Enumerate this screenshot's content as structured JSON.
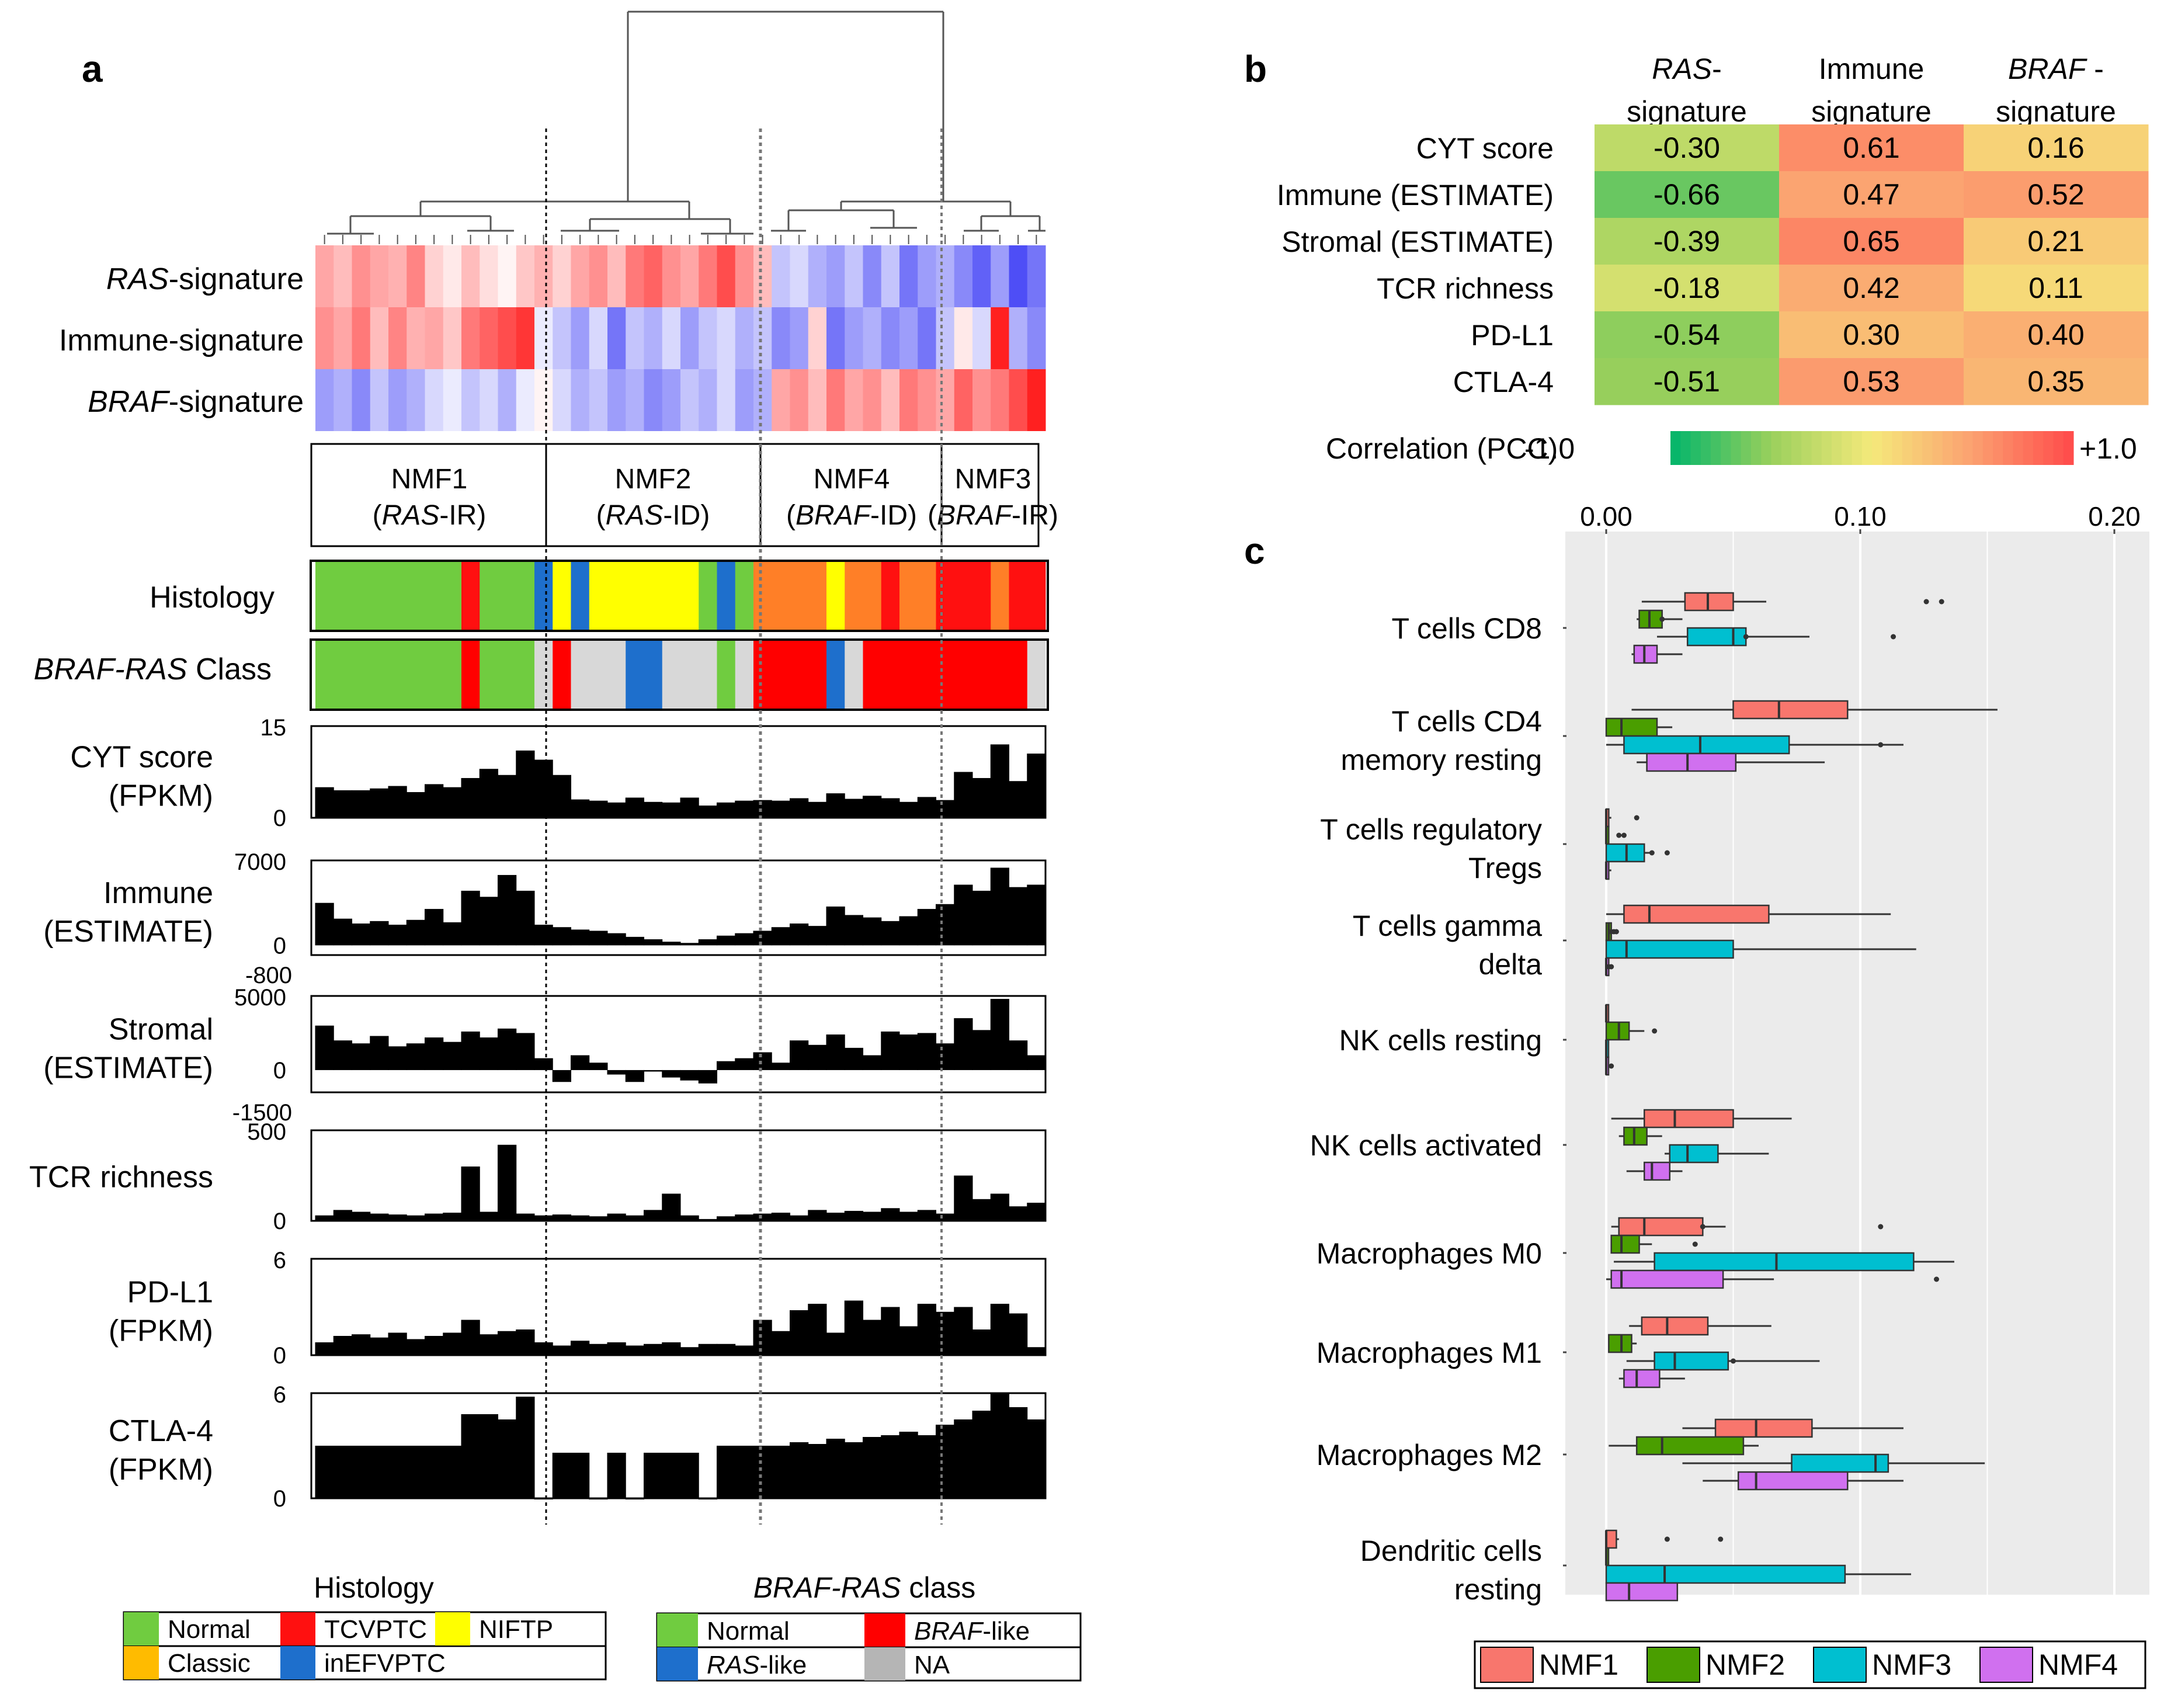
{
  "panel_letters": {
    "a": "a",
    "b": "b",
    "c": "c"
  },
  "colors": {
    "heat_pos": "#ff2020",
    "heat_neg": "#3a3af5",
    "normal": "#70cc40",
    "tcvptc": "#ff1010",
    "niftp": "#ffff00",
    "classic": "#ffbb00",
    "inefvptc": "#1e6fcc",
    "orange": "#ff7f27",
    "braf_like": "#ff0000",
    "ras_like": "#1e6fcc",
    "na": "#d8d8d8",
    "nmf1": "#f8766d",
    "nmf2": "#4a9e00",
    "nmf3": "#00bfd0",
    "nmf4": "#d070ef",
    "panel_bg": "#ebebeb"
  },
  "panel_a": {
    "signature_rows": [
      {
        "italic": "RAS",
        "rest": "-signature"
      },
      {
        "italic": "",
        "rest": "Immune-signature"
      },
      {
        "italic": "BRAF",
        "rest": "-signature"
      }
    ],
    "heatmap": {
      "RAS": [
        0.4,
        0.3,
        0.5,
        0.4,
        0.35,
        0.55,
        0.2,
        0.1,
        0.3,
        0.15,
        0.05,
        0.25,
        0.35,
        0.2,
        0.4,
        0.5,
        0.3,
        0.6,
        0.7,
        0.5,
        0.4,
        0.6,
        0.8,
        0.5,
        0.3,
        -0.3,
        -0.2,
        -0.4,
        -0.5,
        -0.3,
        -0.6,
        -0.3,
        -0.7,
        -0.5,
        -0.4,
        -0.6,
        -0.8,
        -0.5,
        -0.9,
        -0.7
      ],
      "Immune": [
        0.5,
        0.4,
        0.6,
        0.3,
        0.55,
        0.35,
        0.4,
        0.25,
        0.6,
        0.7,
        0.8,
        0.9,
        -0.1,
        -0.3,
        -0.5,
        -0.2,
        -0.7,
        -0.3,
        -0.4,
        -0.2,
        -0.5,
        -0.3,
        -0.2,
        -0.4,
        -0.3,
        -0.6,
        -0.5,
        0.2,
        -0.7,
        -0.5,
        -0.4,
        -0.6,
        -0.5,
        -0.7,
        -0.3,
        0.1,
        -0.2,
        1.0,
        -0.4,
        -0.6
      ],
      "BRAF": [
        -0.5,
        -0.4,
        -0.6,
        -0.3,
        -0.5,
        -0.4,
        -0.2,
        -0.1,
        -0.3,
        -0.2,
        -0.4,
        -0.1,
        0.05,
        -0.2,
        -0.4,
        -0.3,
        -0.5,
        -0.4,
        -0.6,
        -0.5,
        -0.3,
        -0.4,
        -0.2,
        -0.5,
        -0.4,
        0.4,
        0.5,
        0.3,
        0.6,
        0.4,
        0.5,
        0.3,
        0.6,
        0.5,
        0.4,
        0.7,
        0.5,
        0.6,
        0.8,
        1.0
      ]
    },
    "clusters": [
      {
        "name": "NMF1",
        "sub_pre": "(",
        "sub_italic": "RAS",
        "sub_post": "-IR)"
      },
      {
        "name": "NMF2",
        "sub_pre": "(",
        "sub_italic": "RAS",
        "sub_post": "-ID)"
      },
      {
        "name": "NMF4",
        "sub_pre": "(",
        "sub_italic": "BRAF",
        "sub_post": "-ID)"
      },
      {
        "name": "NMF3",
        "sub_pre": "(",
        "sub_italic": "BRAF",
        "sub_post": "-IR)"
      }
    ],
    "histology_label": "Histology",
    "histology_strip": [
      "normal",
      "normal",
      "normal",
      "normal",
      "normal",
      "normal",
      "normal",
      "normal",
      "tcvptc",
      "normal",
      "normal",
      "normal",
      "inefvptc",
      "niftp",
      "inefvptc",
      "niftp",
      "niftp",
      "niftp",
      "niftp",
      "niftp",
      "niftp",
      "normal",
      "inefvptc",
      "normal",
      "orange",
      "orange",
      "orange",
      "orange",
      "niftp",
      "orange",
      "orange",
      "tcvptc",
      "orange",
      "orange",
      "tcvptc",
      "tcvptc",
      "tcvptc",
      "orange",
      "tcvptc",
      "tcvptc"
    ],
    "class_label_italic": "BRAF-RAS",
    "class_label_rest": " Class",
    "class_strip": [
      "normal",
      "normal",
      "normal",
      "normal",
      "normal",
      "normal",
      "normal",
      "normal",
      "braf_like",
      "normal",
      "normal",
      "normal",
      "na",
      "braf_like",
      "na",
      "na",
      "na",
      "ras_like",
      "ras_like",
      "na",
      "na",
      "na",
      "normal",
      "na",
      "braf_like",
      "braf_like",
      "braf_like",
      "braf_like",
      "ras_like",
      "na",
      "braf_like",
      "braf_like",
      "braf_like",
      "braf_like",
      "braf_like",
      "braf_like",
      "braf_like",
      "braf_like",
      "braf_like",
      "na"
    ],
    "bar_tracks": [
      {
        "label1": "CYT score",
        "label2": "(FPKM)",
        "ymax_label": "15",
        "ymin_label": "0",
        "extra_label": "",
        "min": 0,
        "max": 15,
        "values": [
          5,
          4.5,
          4.5,
          4.8,
          5.2,
          4.2,
          5.5,
          5,
          6.5,
          8,
          7,
          11,
          9.5,
          7,
          3,
          2.8,
          2.5,
          3.3,
          2.6,
          2.5,
          3.3,
          2,
          2.5,
          2.8,
          2.9,
          2.8,
          3.2,
          2.6,
          4,
          3.1,
          3.6,
          3.2,
          2.6,
          3.4,
          2.9,
          7.5,
          6.5,
          12,
          6,
          10.5
        ]
      },
      {
        "label1": "Immune",
        "label2": "(ESTIMATE)",
        "ymax_label": "7000",
        "ymin_label": "0",
        "extra_label": "-800",
        "min": -800,
        "max": 7000,
        "values": [
          3500,
          2200,
          1800,
          2000,
          1700,
          2100,
          3000,
          1900,
          4500,
          4000,
          5800,
          4500,
          1700,
          1500,
          1300,
          1200,
          1000,
          700,
          500,
          300,
          200,
          500,
          800,
          1000,
          1200,
          1500,
          1800,
          1600,
          3200,
          2500,
          2300,
          2000,
          2400,
          3000,
          3400,
          5000,
          4500,
          6400,
          4800,
          5000
        ]
      },
      {
        "label1": "Stromal",
        "label2": "(ESTIMATE)",
        "ymax_label": "5000",
        "ymin_label": "0",
        "extra_label": "-1500",
        "min": -1500,
        "max": 5000,
        "values": [
          3000,
          2000,
          1800,
          2300,
          1600,
          1800,
          2200,
          1900,
          2600,
          2200,
          2800,
          2500,
          800,
          -800,
          1000,
          500,
          -300,
          -800,
          -100,
          -500,
          -700,
          -900,
          600,
          800,
          1200,
          500,
          2000,
          1700,
          2400,
          1500,
          1000,
          2600,
          2400,
          2500,
          1800,
          3500,
          2700,
          4800,
          2000,
          1000
        ]
      },
      {
        "label1": "TCR richness",
        "label2": "",
        "ymax_label": "500",
        "ymin_label": "0",
        "extra_label": "",
        "min": 0,
        "max": 500,
        "values": [
          30,
          60,
          50,
          40,
          35,
          30,
          40,
          45,
          300,
          50,
          420,
          40,
          30,
          35,
          30,
          25,
          40,
          30,
          60,
          150,
          30,
          10,
          25,
          35,
          40,
          45,
          30,
          60,
          45,
          55,
          50,
          70,
          50,
          60,
          40,
          250,
          120,
          150,
          80,
          100
        ]
      },
      {
        "label1": "PD-L1",
        "label2": "(FPKM)",
        "ymax_label": "6",
        "ymin_label": "0",
        "extra_label": "",
        "min": 0,
        "max": 6,
        "values": [
          0.8,
          1.2,
          1.3,
          1.1,
          1.4,
          1,
          1.2,
          1.4,
          2.2,
          1.3,
          1.5,
          1.6,
          0.8,
          0.6,
          0.9,
          0.7,
          0.8,
          0.6,
          0.7,
          0.8,
          0.5,
          0.7,
          0.7,
          0.6,
          2.2,
          1.5,
          2.8,
          3.2,
          1.4,
          3.4,
          2.2,
          3.0,
          1.8,
          3.2,
          2.7,
          3.0,
          1.6,
          3.2,
          2.6,
          0.5
        ]
      },
      {
        "label1": "CTLA-4",
        "label2": "(FPKM)",
        "ymax_label": "6",
        "ymin_label": "0",
        "extra_label": "",
        "min": 0,
        "max": 6,
        "values": [
          3,
          3,
          3,
          3,
          3,
          3,
          3,
          3,
          4.8,
          4.8,
          4.5,
          5.8,
          0,
          2.6,
          2.6,
          0,
          2.6,
          0,
          2.6,
          2.6,
          2.6,
          0,
          3,
          3,
          3,
          3,
          3.2,
          3.1,
          3.4,
          3.2,
          3.5,
          3.6,
          3.8,
          3.6,
          4.2,
          4.5,
          5.0,
          6,
          5.2,
          4.5
        ]
      }
    ],
    "legend_histology": {
      "title": "Histology",
      "items": [
        {
          "label": "Normal",
          "color": "#70cc40"
        },
        {
          "label": "TCVPTC",
          "color": "#ff1010"
        },
        {
          "label": "NIFTP",
          "color": "#ffff00"
        },
        {
          "label": "Classic",
          "color": "#ffbb00"
        },
        {
          "label": "inEFVPTC",
          "color": "#1e6fcc"
        }
      ]
    },
    "legend_class": {
      "title_italic": "BRAF-RAS",
      "title_rest": " class",
      "items": [
        {
          "pre": "Normal",
          "italic": "",
          "post": "",
          "color": "#70cc40"
        },
        {
          "pre": "",
          "italic": "BRAF",
          "post": "-like",
          "color": "#ff0000"
        },
        {
          "pre": "",
          "italic": "RAS",
          "post": "-like",
          "color": "#1e6fcc"
        },
        {
          "pre": "NA",
          "italic": "",
          "post": "",
          "color": "#b5b5b5"
        }
      ]
    }
  },
  "panel_b": {
    "columns": [
      {
        "italic": "RAS",
        "line1_rest": "-",
        "line2": "signature"
      },
      {
        "italic": "",
        "line1_rest": "Immune",
        "line2": "signature"
      },
      {
        "italic": "BRAF",
        "line1_rest": " -",
        "line2": "signature"
      }
    ],
    "rows": [
      "CYT score",
      "Immune (ESTIMATE)",
      "Stromal (ESTIMATE)",
      "TCR richness",
      "PD-L1",
      "CTLA-4"
    ],
    "values": [
      [
        "-0.30",
        "0.61",
        "0.16"
      ],
      [
        "-0.66",
        "0.47",
        "0.52"
      ],
      [
        "-0.39",
        "0.65",
        "0.21"
      ],
      [
        "-0.18",
        "0.42",
        "0.11"
      ],
      [
        "-0.54",
        "0.30",
        "0.40"
      ],
      [
        "-0.51",
        "0.53",
        "0.35"
      ]
    ],
    "colorbar_label": "Correlation (PCC)",
    "colorbar_min": "-1.0",
    "colorbar_max": "+1.0"
  },
  "chart_data": {
    "type": "boxplot",
    "x_ticks": [
      "0.00",
      "0.10",
      "0.20"
    ],
    "xlim": [
      -0.002,
      0.21
    ],
    "categories": [
      {
        "line1": "T cells CD8",
        "line2": ""
      },
      {
        "line1": "T cells CD4",
        "line2": "memory resting"
      },
      {
        "line1": "T cells regulatory",
        "line2": "Tregs"
      },
      {
        "line1": "T cells gamma",
        "line2": "delta"
      },
      {
        "line1": "NK cells resting",
        "line2": ""
      },
      {
        "line1": "NK cells activated",
        "line2": ""
      },
      {
        "line1": "Macrophages M0",
        "line2": ""
      },
      {
        "line1": "Macrophages M1",
        "line2": ""
      },
      {
        "line1": "Macrophages M2",
        "line2": ""
      },
      {
        "line1": "Dendritic cells",
        "line2": "resting"
      }
    ],
    "legend": [
      "NMF1",
      "NMF2",
      "NMF3",
      "NMF4"
    ],
    "boxes": [
      [
        [
          0.014,
          0.031,
          0.04,
          0.05,
          0.063
        ],
        [
          0.012,
          0.013,
          0.017,
          0.022,
          0.03
        ],
        [
          0.02,
          0.032,
          0.05,
          0.055,
          0.08
        ],
        [
          0.01,
          0.011,
          0.015,
          0.02,
          0.03
        ]
      ],
      [
        [
          0.01,
          0.05,
          0.068,
          0.095,
          0.154
        ],
        [
          0.0,
          0.0,
          0.006,
          0.02,
          0.026
        ],
        [
          0.0,
          0.007,
          0.037,
          0.072,
          0.117
        ],
        [
          0.012,
          0.016,
          0.032,
          0.051,
          0.086
        ]
      ],
      [
        [
          0.0,
          0.0,
          0.0,
          0.001,
          0.002
        ],
        [
          0.0,
          0.0,
          0.0,
          0.001,
          0.001
        ],
        [
          0.0,
          0.0,
          0.008,
          0.015,
          0.018
        ],
        [
          0.0,
          0.0,
          0.0,
          0.001,
          0.002
        ]
      ],
      [
        [
          0.0,
          0.007,
          0.017,
          0.064,
          0.112
        ],
        [
          0.0,
          0.0,
          0.001,
          0.002,
          0.003
        ],
        [
          0.0,
          0.0,
          0.008,
          0.05,
          0.122
        ],
        [
          0.0,
          0.0,
          0.0,
          0.001,
          0.002
        ]
      ],
      [
        [
          0.0,
          0.0,
          0.0,
          0.0,
          0.0
        ],
        [
          0.0,
          0.0,
          0.005,
          0.009,
          0.015
        ],
        [
          0.0,
          0.0,
          0.0,
          0.0,
          0.0
        ],
        [
          0.0,
          0.0,
          0.0,
          0.0,
          0.0
        ]
      ],
      [
        [
          0.002,
          0.015,
          0.027,
          0.05,
          0.073
        ],
        [
          0.005,
          0.007,
          0.011,
          0.016,
          0.022
        ],
        [
          0.023,
          0.025,
          0.032,
          0.044,
          0.064
        ],
        [
          0.008,
          0.015,
          0.018,
          0.025,
          0.03
        ]
      ],
      [
        [
          0.002,
          0.005,
          0.015,
          0.038,
          0.047
        ],
        [
          0.002,
          0.002,
          0.006,
          0.013,
          0.018
        ],
        [
          0.003,
          0.019,
          0.067,
          0.121,
          0.137
        ],
        [
          0.0,
          0.002,
          0.006,
          0.046,
          0.066
        ]
      ],
      [
        [
          0.009,
          0.014,
          0.024,
          0.04,
          0.065
        ],
        [
          0.001,
          0.001,
          0.006,
          0.01,
          0.012
        ],
        [
          0.008,
          0.019,
          0.027,
          0.048,
          0.084
        ],
        [
          0.005,
          0.007,
          0.012,
          0.021,
          0.031
        ]
      ],
      [
        [
          0.03,
          0.043,
          0.059,
          0.081,
          0.117
        ],
        [
          0.001,
          0.012,
          0.022,
          0.054,
          0.06
        ],
        [
          0.03,
          0.073,
          0.106,
          0.111,
          0.149
        ],
        [
          0.038,
          0.052,
          0.059,
          0.095,
          0.117
        ]
      ],
      [
        [
          0.0,
          0.0,
          0.0,
          0.004,
          0.005
        ],
        [
          0.0,
          0.0,
          0.0,
          0.0,
          0.0
        ],
        [
          0.0,
          0.0,
          0.023,
          0.094,
          0.12
        ],
        [
          0.0,
          0.0,
          0.009,
          0.028,
          0.028
        ]
      ]
    ],
    "outliers": [
      [
        [
          0.126,
          0.132
        ],
        [
          0.022
        ],
        [
          0.113,
          0.055
        ],
        []
      ],
      [
        [],
        [],
        [
          0.108
        ],
        []
      ],
      [
        [
          0.012
        ],
        [
          0.005,
          0.007
        ],
        [
          0.018,
          0.024
        ],
        []
      ],
      [
        [],
        [
          0.002,
          0.003,
          0.004
        ],
        [],
        [
          0.001,
          0.002
        ]
      ],
      [
        [],
        [
          0.019
        ],
        [],
        [
          0.002
        ]
      ],
      [
        [],
        [],
        [],
        []
      ],
      [
        [
          0.108,
          0.038
        ],
        [
          0.035
        ],
        [],
        [
          0.13
        ]
      ],
      [
        [],
        [],
        [
          0.05
        ],
        []
      ],
      [
        [],
        [],
        [],
        []
      ],
      [
        [
          0.024,
          0.045
        ],
        [],
        [],
        []
      ]
    ]
  }
}
